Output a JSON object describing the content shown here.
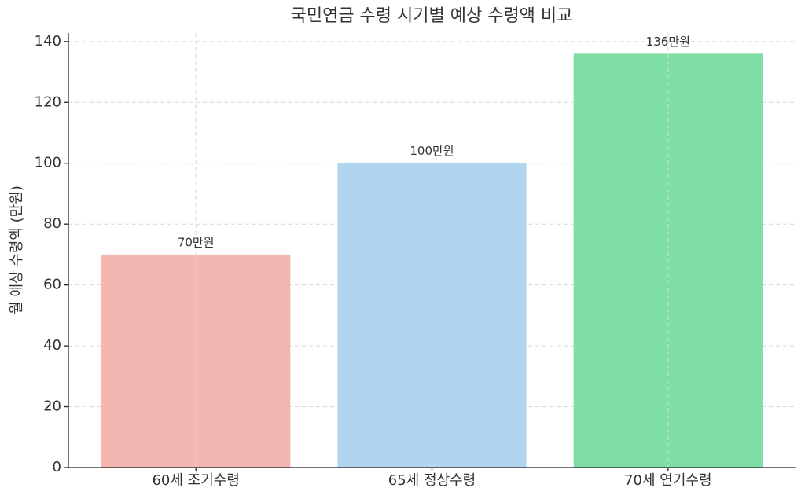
{
  "chart_data": {
    "type": "bar",
    "title": "국민연금 수령 시기별 예상 수령액 비교",
    "y_label": "월 예상 수령액 (만원)",
    "categories": [
      "60세 조기수령",
      "65세 정상수령",
      "70세 연기수령"
    ],
    "values": [
      70,
      100,
      136
    ],
    "value_labels": [
      "70만원",
      "100만원",
      "136만원"
    ],
    "colors": [
      "#f4b6b0",
      "#b1d5ee",
      "#7fdea5"
    ],
    "ylim": [
      0,
      142.8
    ],
    "yticks": [
      0,
      20,
      40,
      60,
      80,
      100,
      120,
      140
    ],
    "grid": true
  }
}
